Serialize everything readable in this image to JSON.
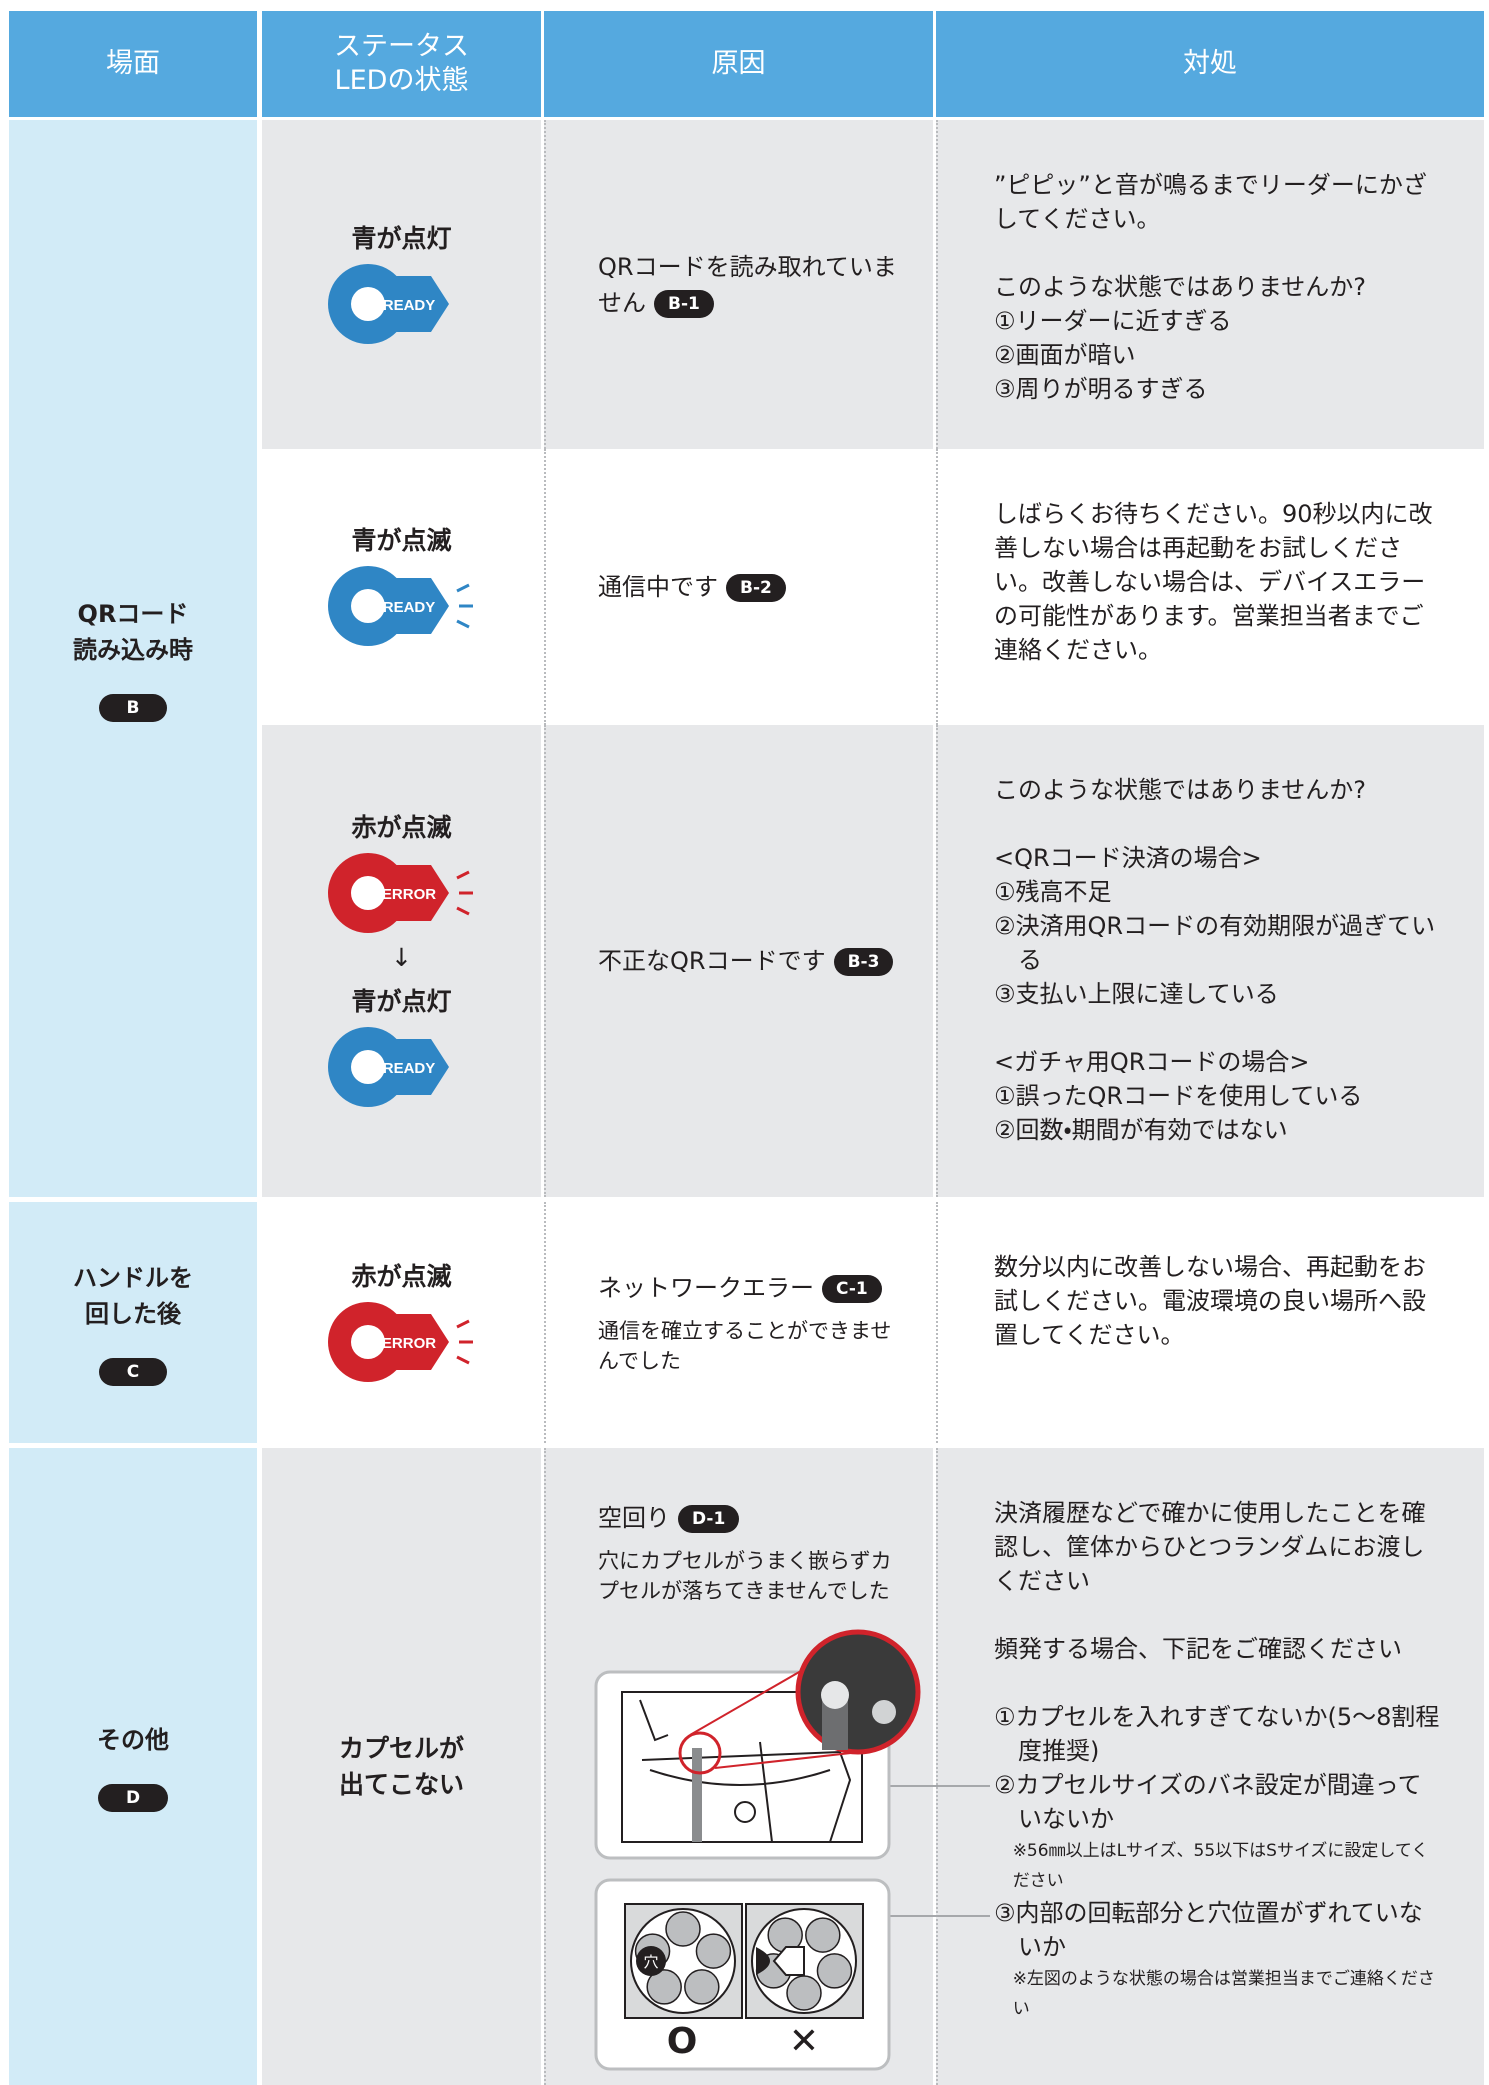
{
  "header": {
    "cells": [
      [
        "場面"
      ],
      [
        "ステータス",
        "LEDの状態"
      ],
      [
        "原因"
      ],
      [
        "対処"
      ]
    ]
  },
  "groups": [
    {
      "scene": [
        "QRコード",
        "読み込み時"
      ],
      "badge": "B",
      "rows": [
        {
          "led": [
            {
              "label": "青が点灯",
              "icon": "READY",
              "color": "#2f86c5",
              "blink": false
            }
          ],
          "cause": {
            "text": "QRコードを読み取れていません",
            "badge": "B-1"
          },
          "action": [
            [
              "”ピピッ”と音が鳴るまでリーダーにかざしてください。"
            ],
            [
              "このような状態ではありませんか?",
              "①リーダーに近すぎる",
              "②画面が暗い",
              "③周りが明るすぎる"
            ]
          ]
        },
        {
          "led": [
            {
              "label": "青が点滅",
              "icon": "READY",
              "color": "#2f86c5",
              "blink": true
            }
          ],
          "cause": {
            "text": "通信中です",
            "badge": "B-2"
          },
          "action": [
            [
              "しばらくお待ちください。90秒以内に改善しない場合は再起動をお試しください。改善しない場合は、デバイスエラーの可能性があります。営業担当者までご連絡ください。"
            ]
          ]
        },
        {
          "led": [
            {
              "label": "赤が点滅",
              "icon": "ERROR",
              "color": "#d0232b",
              "blink": true
            },
            {
              "label": "青が点灯",
              "icon": "READY",
              "color": "#2f86c5",
              "blink": false
            }
          ],
          "arrow": "↓",
          "cause": {
            "text": "不正なQRコードです",
            "badge": "B-3"
          },
          "action": [
            [
              "このような状態ではありませんか?"
            ],
            [
              "<QRコード決済の場合>",
              "①残高不足",
              "②決済用QRコードの有効期限が過ぎている",
              "③支払い上限に達している"
            ],
            [
              " <ガチャ用QRコードの場合>",
              "①誤ったQRコードを使用している",
              "②回数・期間が有効ではない"
            ]
          ]
        }
      ]
    },
    {
      "scene": [
        "ハンドルを",
        "回した後"
      ],
      "badge": "C",
      "rows": [
        {
          "led": [
            {
              "label": "赤が点滅",
              "icon": "ERROR",
              "color": "#d0232b",
              "blink": true
            }
          ],
          "cause": {
            "text": "ネットワークエラー",
            "badge": "C-1",
            "note": "通信を確立することができませんでした"
          },
          "action": [
            [
              "数分以内に改善しない場合、再起動をお試しください。電波環境の良い場所へ設置してください。"
            ]
          ]
        }
      ]
    },
    {
      "scene": [
        "その他"
      ],
      "badge": "D",
      "rows": [
        {
          "led": [
            {
              "lines": [
                "カプセルが",
                "出てこない"
              ]
            }
          ],
          "cause": {
            "text": "空回り",
            "badge": "D-1",
            "note": "穴にカプセルがうまく嵌らずカプセルが落ちてきませんでした",
            "figure": {
              "hole": "穴",
              "ok": "O",
              "ng": "✕"
            }
          },
          "action": [
            [
              "決済履歴などで確かに使用したことを確認し、筐体からひとつランダムにお渡しください"
            ],
            [
              "頻発する場合、下記をご確認ください"
            ],
            [
              "①カプセルを入れすぎてないか(5〜8割程度推奨)",
              "②カプセルサイズのバネ設定が間違っていないか",
              {
                "note": "※56㎜以上はLサイズ、55以下はSサイズに設定してください"
              },
              "③内部の回転部分と穴位置がずれていないか",
              {
                "note": "※左図のような状態の場合は営業担当までご連絡ください"
              }
            ]
          ]
        }
      ]
    }
  ]
}
